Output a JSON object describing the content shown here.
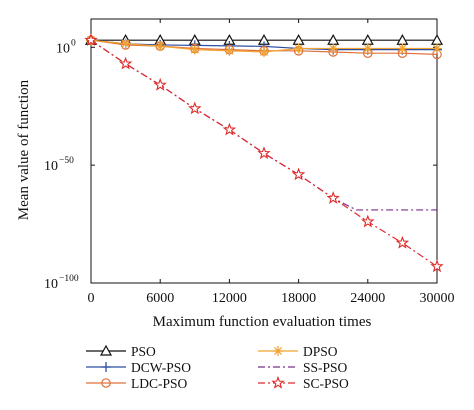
{
  "chart_data": {
    "type": "line",
    "title": "",
    "xlabel": "Maximum function evaluation times",
    "ylabel": "Mean value of function",
    "x_ticks": [
      "0",
      "6000",
      "12000",
      "18000",
      "24000",
      "30000"
    ],
    "y_ticks": [
      {
        "base": "10",
        "exp": "0",
        "value": 0
      },
      {
        "base": "10",
        "exp": "−50",
        "value": -50
      },
      {
        "base": "10",
        "exp": "−100",
        "value": -100
      }
    ],
    "xlim": [
      0,
      30000
    ],
    "ylim_log10": [
      -100,
      12
    ],
    "y_scale": "log",
    "grid": false,
    "legend_position": "below",
    "series": [
      {
        "name": "PSO",
        "color": "#111111",
        "marker": "triangle",
        "dash": "",
        "x": [
          0,
          3000,
          6000,
          9000,
          12000,
          15000,
          18000,
          21000,
          24000,
          27000,
          30000
        ],
        "y_log10": [
          3,
          3,
          3,
          3,
          3,
          3,
          3,
          3,
          3,
          3,
          3
        ]
      },
      {
        "name": "DCW-PSO",
        "color": "#2c4fa3",
        "marker": "plus",
        "dash": "",
        "x": [
          0,
          3000,
          6000,
          9000,
          12000,
          15000,
          18000,
          21000,
          24000,
          27000,
          30000
        ],
        "y_log10": [
          3,
          1.5,
          1,
          0.8,
          0.6,
          0.4,
          -0.5,
          -1,
          -1,
          -1,
          -1
        ]
      },
      {
        "name": "LDC-PSO",
        "color": "#e0703a",
        "marker": "circle",
        "dash": "",
        "x": [
          0,
          3000,
          6000,
          9000,
          12000,
          15000,
          18000,
          21000,
          24000,
          27000,
          30000
        ],
        "y_log10": [
          3,
          1,
          0.5,
          -0.5,
          -1,
          -1.5,
          -1.5,
          -2,
          -2.5,
          -2.5,
          -3
        ]
      },
      {
        "name": "DPSO",
        "color": "#f0a330",
        "marker": "asterisk",
        "dash": "",
        "x": [
          0,
          3000,
          6000,
          9000,
          12000,
          15000,
          18000,
          21000,
          24000,
          27000,
          30000
        ],
        "y_log10": [
          3,
          1.5,
          0.5,
          -1,
          -1.5,
          -2,
          -0.5,
          -0.5,
          -0.5,
          -0.5,
          -0.5
        ]
      },
      {
        "name": "SS-PSO",
        "color": "#7b2d8c",
        "marker": "none",
        "dash": "7 3 2 3",
        "x": [
          0,
          3000,
          6000,
          9000,
          12000,
          15000,
          18000,
          21000,
          23000,
          24000,
          27000,
          30000
        ],
        "y_log10": [
          3,
          -7,
          -16,
          -26,
          -35,
          -45,
          -54,
          -64,
          -69,
          -69,
          -69,
          -69
        ]
      },
      {
        "name": "SC-PSO",
        "color": "#e02a2a",
        "marker": "star",
        "dash": "7 3 2 3",
        "x": [
          0,
          3000,
          6000,
          9000,
          12000,
          15000,
          18000,
          21000,
          24000,
          27000,
          30000
        ],
        "y_log10": [
          3,
          -7,
          -16,
          -26,
          -35,
          -45,
          -54,
          -64,
          -74,
          -83,
          -93
        ]
      }
    ]
  }
}
